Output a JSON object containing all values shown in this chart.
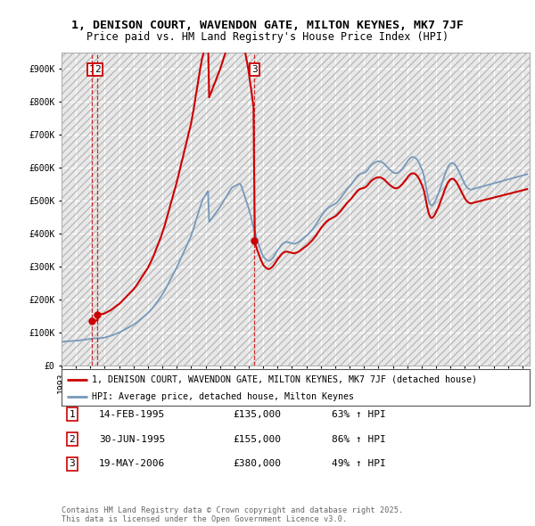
{
  "title_line1": "1, DENISON COURT, WAVENDON GATE, MILTON KEYNES, MK7 7JF",
  "title_line2": "Price paid vs. HM Land Registry's House Price Index (HPI)",
  "ylim": [
    0,
    950000
  ],
  "ytick_vals": [
    0,
    100000,
    200000,
    300000,
    400000,
    500000,
    600000,
    700000,
    800000,
    900000
  ],
  "ytick_labels": [
    "£0",
    "£100K",
    "£200K",
    "£300K",
    "£400K",
    "£500K",
    "£600K",
    "£700K",
    "£800K",
    "£900K"
  ],
  "background_color": "#ffffff",
  "plot_bg_color": "#e8e8e8",
  "grid_color": "#ffffff",
  "hpi_color": "#7799bb",
  "price_color": "#cc0000",
  "legend_label_price": "1, DENISON COURT, WAVENDON GATE, MILTON KEYNES, MK7 7JF (detached house)",
  "legend_label_hpi": "HPI: Average price, detached house, Milton Keynes",
  "transactions": [
    {
      "num": 1,
      "date_label": "14-FEB-1995",
      "price": 135000,
      "hpi_pct": "63% ↑ HPI",
      "x_year": 1995.12
    },
    {
      "num": 2,
      "date_label": "30-JUN-1995",
      "price": 155000,
      "hpi_pct": "86% ↑ HPI",
      "x_year": 1995.5
    },
    {
      "num": 3,
      "date_label": "19-MAY-2006",
      "price": 380000,
      "hpi_pct": "49% ↑ HPI",
      "x_year": 2006.38
    }
  ],
  "footer_line1": "Contains HM Land Registry data © Crown copyright and database right 2025.",
  "footer_line2": "This data is licensed under the Open Government Licence v3.0.",
  "x_min": 1993.0,
  "x_max": 2025.5,
  "hpi_x": [
    1993.0,
    1993.08,
    1993.17,
    1993.25,
    1993.33,
    1993.42,
    1993.5,
    1993.58,
    1993.67,
    1993.75,
    1993.83,
    1993.92,
    1994.0,
    1994.08,
    1994.17,
    1994.25,
    1994.33,
    1994.42,
    1994.5,
    1994.58,
    1994.67,
    1994.75,
    1994.83,
    1994.92,
    1995.0,
    1995.08,
    1995.17,
    1995.25,
    1995.33,
    1995.42,
    1995.5,
    1995.58,
    1995.67,
    1995.75,
    1995.83,
    1995.92,
    1996.0,
    1996.08,
    1996.17,
    1996.25,
    1996.33,
    1996.42,
    1996.5,
    1996.58,
    1996.67,
    1996.75,
    1996.83,
    1996.92,
    1997.0,
    1997.08,
    1997.17,
    1997.25,
    1997.33,
    1997.42,
    1997.5,
    1997.58,
    1997.67,
    1997.75,
    1997.83,
    1997.92,
    1998.0,
    1998.08,
    1998.17,
    1998.25,
    1998.33,
    1998.42,
    1998.5,
    1998.58,
    1998.67,
    1998.75,
    1998.83,
    1998.92,
    1999.0,
    1999.08,
    1999.17,
    1999.25,
    1999.33,
    1999.42,
    1999.5,
    1999.58,
    1999.67,
    1999.75,
    1999.83,
    1999.92,
    2000.0,
    2000.08,
    2000.17,
    2000.25,
    2000.33,
    2000.42,
    2000.5,
    2000.58,
    2000.67,
    2000.75,
    2000.83,
    2000.92,
    2001.0,
    2001.08,
    2001.17,
    2001.25,
    2001.33,
    2001.42,
    2001.5,
    2001.58,
    2001.67,
    2001.75,
    2001.83,
    2001.92,
    2002.0,
    2002.08,
    2002.17,
    2002.25,
    2002.33,
    2002.42,
    2002.5,
    2002.58,
    2002.67,
    2002.75,
    2002.83,
    2002.92,
    2003.0,
    2003.08,
    2003.17,
    2003.25,
    2003.33,
    2003.42,
    2003.5,
    2003.58,
    2003.67,
    2003.75,
    2003.83,
    2003.92,
    2004.0,
    2004.08,
    2004.17,
    2004.25,
    2004.33,
    2004.42,
    2004.5,
    2004.58,
    2004.67,
    2004.75,
    2004.83,
    2004.92,
    2005.0,
    2005.08,
    2005.17,
    2005.25,
    2005.33,
    2005.42,
    2005.5,
    2005.58,
    2005.67,
    2005.75,
    2005.83,
    2005.92,
    2006.0,
    2006.08,
    2006.17,
    2006.25,
    2006.33,
    2006.42,
    2006.5,
    2006.58,
    2006.67,
    2006.75,
    2006.83,
    2006.92,
    2007.0,
    2007.08,
    2007.17,
    2007.25,
    2007.33,
    2007.42,
    2007.5,
    2007.58,
    2007.67,
    2007.75,
    2007.83,
    2007.92,
    2008.0,
    2008.08,
    2008.17,
    2008.25,
    2008.33,
    2008.42,
    2008.5,
    2008.58,
    2008.67,
    2008.75,
    2008.83,
    2008.92,
    2009.0,
    2009.08,
    2009.17,
    2009.25,
    2009.33,
    2009.42,
    2009.5,
    2009.58,
    2009.67,
    2009.75,
    2009.83,
    2009.92,
    2010.0,
    2010.08,
    2010.17,
    2010.25,
    2010.33,
    2010.42,
    2010.5,
    2010.58,
    2010.67,
    2010.75,
    2010.83,
    2010.92,
    2011.0,
    2011.08,
    2011.17,
    2011.25,
    2011.33,
    2011.42,
    2011.5,
    2011.58,
    2011.67,
    2011.75,
    2011.83,
    2011.92,
    2012.0,
    2012.08,
    2012.17,
    2012.25,
    2012.33,
    2012.42,
    2012.5,
    2012.58,
    2012.67,
    2012.75,
    2012.83,
    2012.92,
    2013.0,
    2013.08,
    2013.17,
    2013.25,
    2013.33,
    2013.42,
    2013.5,
    2013.58,
    2013.67,
    2013.75,
    2013.83,
    2013.92,
    2014.0,
    2014.08,
    2014.17,
    2014.25,
    2014.33,
    2014.42,
    2014.5,
    2014.58,
    2014.67,
    2014.75,
    2014.83,
    2014.92,
    2015.0,
    2015.08,
    2015.17,
    2015.25,
    2015.33,
    2015.42,
    2015.5,
    2015.58,
    2015.67,
    2015.75,
    2015.83,
    2015.92,
    2016.0,
    2016.08,
    2016.17,
    2016.25,
    2016.33,
    2016.42,
    2016.5,
    2016.58,
    2016.67,
    2016.75,
    2016.83,
    2016.92,
    2017.0,
    2017.08,
    2017.17,
    2017.25,
    2017.33,
    2017.42,
    2017.5,
    2017.58,
    2017.67,
    2017.75,
    2017.83,
    2017.92,
    2018.0,
    2018.08,
    2018.17,
    2018.25,
    2018.33,
    2018.42,
    2018.5,
    2018.58,
    2018.67,
    2018.75,
    2018.83,
    2018.92,
    2019.0,
    2019.08,
    2019.17,
    2019.25,
    2019.33,
    2019.42,
    2019.5,
    2019.58,
    2019.67,
    2019.75,
    2019.83,
    2019.92,
    2020.0,
    2020.08,
    2020.17,
    2020.25,
    2020.33,
    2020.42,
    2020.5,
    2020.58,
    2020.67,
    2020.75,
    2020.83,
    2020.92,
    2021.0,
    2021.08,
    2021.17,
    2021.25,
    2021.33,
    2021.42,
    2021.5,
    2021.58,
    2021.67,
    2021.75,
    2021.83,
    2021.92,
    2022.0,
    2022.08,
    2022.17,
    2022.25,
    2022.33,
    2022.42,
    2022.5,
    2022.58,
    2022.67,
    2022.75,
    2022.83,
    2022.92,
    2023.0,
    2023.08,
    2023.17,
    2023.25,
    2023.33,
    2023.42,
    2023.5,
    2023.58,
    2023.67,
    2023.75,
    2023.83,
    2023.92,
    2024.0,
    2024.08,
    2024.17,
    2024.25,
    2024.33,
    2024.42,
    2024.5,
    2024.58,
    2024.67,
    2024.75,
    2024.83,
    2024.92,
    2025.0,
    2025.08,
    2025.17,
    2025.25,
    2025.33
  ],
  "hpi_y": [
    72000,
    72500,
    73000,
    73200,
    73400,
    73500,
    73600,
    73800,
    74000,
    74200,
    74500,
    74800,
    75000,
    75500,
    76000,
    76500,
    77000,
    77500,
    78000,
    78500,
    79000,
    79500,
    80000,
    80500,
    81000,
    81500,
    82000,
    82300,
    82600,
    82800,
    83000,
    83200,
    83400,
    83600,
    83800,
    84000,
    85000,
    86000,
    87000,
    88000,
    89000,
    90000,
    91500,
    93000,
    94500,
    96000,
    97500,
    99000,
    100000,
    102000,
    104000,
    106000,
    108000,
    110000,
    112000,
    114000,
    116000,
    118000,
    120000,
    122000,
    124000,
    126500,
    129000,
    132000,
    135000,
    138000,
    141000,
    144000,
    147000,
    150000,
    153000,
    156000,
    159000,
    163000,
    167000,
    171000,
    175000,
    180000,
    185000,
    190000,
    195000,
    200000,
    205000,
    210000,
    216000,
    222000,
    228000,
    235000,
    242000,
    249000,
    256000,
    263000,
    270000,
    277000,
    284000,
    291000,
    298000,
    306000,
    314000,
    322000,
    330000,
    338000,
    346000,
    354000,
    362000,
    370000,
    378000,
    386000,
    394000,
    405000,
    416000,
    428000,
    440000,
    452000,
    464000,
    476000,
    488000,
    498000,
    506000,
    512000,
    518000,
    524000,
    530000,
    436000,
    441000,
    446000,
    451000,
    456000,
    461000,
    466000,
    471000,
    476000,
    481000,
    487000,
    493000,
    499000,
    505000,
    511000,
    517000,
    523000,
    529000,
    535000,
    540000,
    542000,
    544000,
    546000,
    548000,
    550000,
    552000,
    551000,
    543000,
    532000,
    521000,
    510000,
    499000,
    488000,
    477000,
    462000,
    448000,
    434000,
    420000,
    406000,
    393000,
    381000,
    370000,
    359000,
    349000,
    340000,
    332000,
    327000,
    323000,
    320000,
    318000,
    318000,
    320000,
    323000,
    327000,
    332000,
    338000,
    344000,
    350000,
    355000,
    360000,
    365000,
    369000,
    372000,
    374000,
    375000,
    375000,
    374000,
    373000,
    372000,
    371000,
    370000,
    370000,
    371000,
    372000,
    374000,
    376000,
    379000,
    382000,
    385000,
    388000,
    391000,
    394000,
    397000,
    401000,
    405000,
    409000,
    413000,
    418000,
    423000,
    428000,
    434000,
    440000,
    446000,
    452000,
    457000,
    462000,
    467000,
    471000,
    475000,
    478000,
    481000,
    483000,
    485000,
    487000,
    489000,
    491000,
    494000,
    498000,
    502000,
    506000,
    511000,
    516000,
    521000,
    526000,
    531000,
    536000,
    540000,
    544000,
    548000,
    553000,
    558000,
    563000,
    568000,
    573000,
    577000,
    580000,
    582000,
    583000,
    584000,
    585000,
    587000,
    590000,
    594000,
    599000,
    604000,
    608000,
    611000,
    614000,
    616000,
    618000,
    619000,
    620000,
    620000,
    619000,
    617000,
    615000,
    612000,
    608000,
    604000,
    600000,
    596000,
    593000,
    590000,
    587000,
    585000,
    584000,
    584000,
    585000,
    587000,
    590000,
    594000,
    598000,
    603000,
    608000,
    613000,
    618000,
    624000,
    628000,
    631000,
    633000,
    633000,
    632000,
    630000,
    626000,
    621000,
    614000,
    606000,
    597000,
    588000,
    574000,
    556000,
    536000,
    516000,
    500000,
    491000,
    486000,
    487000,
    491000,
    497000,
    505000,
    513000,
    522000,
    532000,
    542000,
    553000,
    564000,
    576000,
    586000,
    595000,
    603000,
    609000,
    613000,
    615000,
    615000,
    613000,
    609000,
    604000,
    597000,
    590000,
    582000,
    574000,
    566000,
    558000,
    551000,
    545000,
    540000,
    537000,
    535000,
    534000,
    535000,
    536000,
    537000,
    538000,
    539000,
    540000,
    541000,
    542000,
    543000,
    544000,
    545000,
    546000,
    547000,
    548000,
    549000,
    550000,
    551000,
    552000,
    553000,
    554000,
    555000,
    556000,
    557000,
    558000,
    559000,
    560000,
    561000,
    562000,
    563000,
    564000,
    565000,
    566000,
    567000,
    568000,
    569000,
    570000,
    571000,
    572000,
    573000,
    574000,
    575000,
    576000,
    577000,
    578000,
    579000,
    580000,
    581000
  ]
}
